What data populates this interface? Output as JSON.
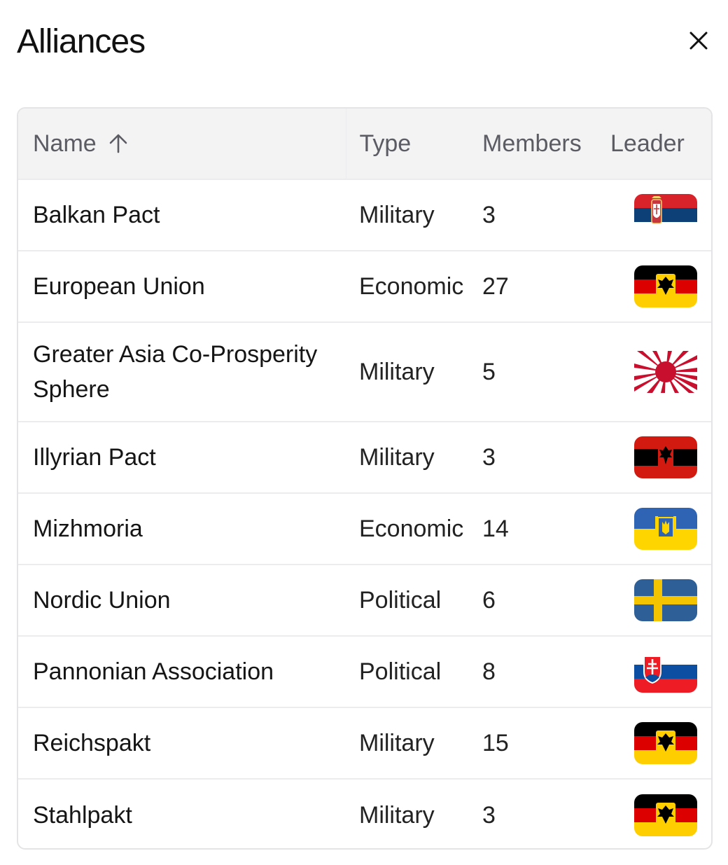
{
  "header": {
    "title": "Alliances",
    "close_icon": "close-icon"
  },
  "table": {
    "columns": {
      "name": "Name",
      "type": "Type",
      "members": "Members",
      "leader": "Leader"
    },
    "sort": {
      "column": "Name",
      "direction": "ascending",
      "icon": "arrow-up-icon"
    },
    "rows": [
      {
        "name": "Balkan Pact",
        "type": "Military",
        "members": "3",
        "leader_flag": "serbia-flag-icon"
      },
      {
        "name": "European Union",
        "type": "Economic",
        "members": "27",
        "leader_flag": "german-empire-eagle-flag-icon"
      },
      {
        "name": "Greater Asia Co-Prosperity Sphere",
        "type": "Military",
        "members": "5",
        "leader_flag": "rising-sun-flag-icon"
      },
      {
        "name": "Illyrian Pact",
        "type": "Military",
        "members": "3",
        "leader_flag": "albania-flag-icon"
      },
      {
        "name": "Mizhmoria",
        "type": "Economic",
        "members": "14",
        "leader_flag": "ukraine-coat-of-arms-flag-icon"
      },
      {
        "name": "Nordic Union",
        "type": "Political",
        "members": "6",
        "leader_flag": "sweden-flag-icon"
      },
      {
        "name": "Pannonian Association",
        "type": "Political",
        "members": "8",
        "leader_flag": "slovakia-flag-icon"
      },
      {
        "name": "Reichspakt",
        "type": "Military",
        "members": "15",
        "leader_flag": "german-empire-eagle-flag-icon"
      },
      {
        "name": "Stahlpakt",
        "type": "Military",
        "members": "3",
        "leader_flag": "german-empire-eagle-flag-icon"
      }
    ]
  },
  "colors": {
    "header_bg": "#f3f3f4",
    "border": "#e4e4e6",
    "header_text": "#5b5b63"
  }
}
